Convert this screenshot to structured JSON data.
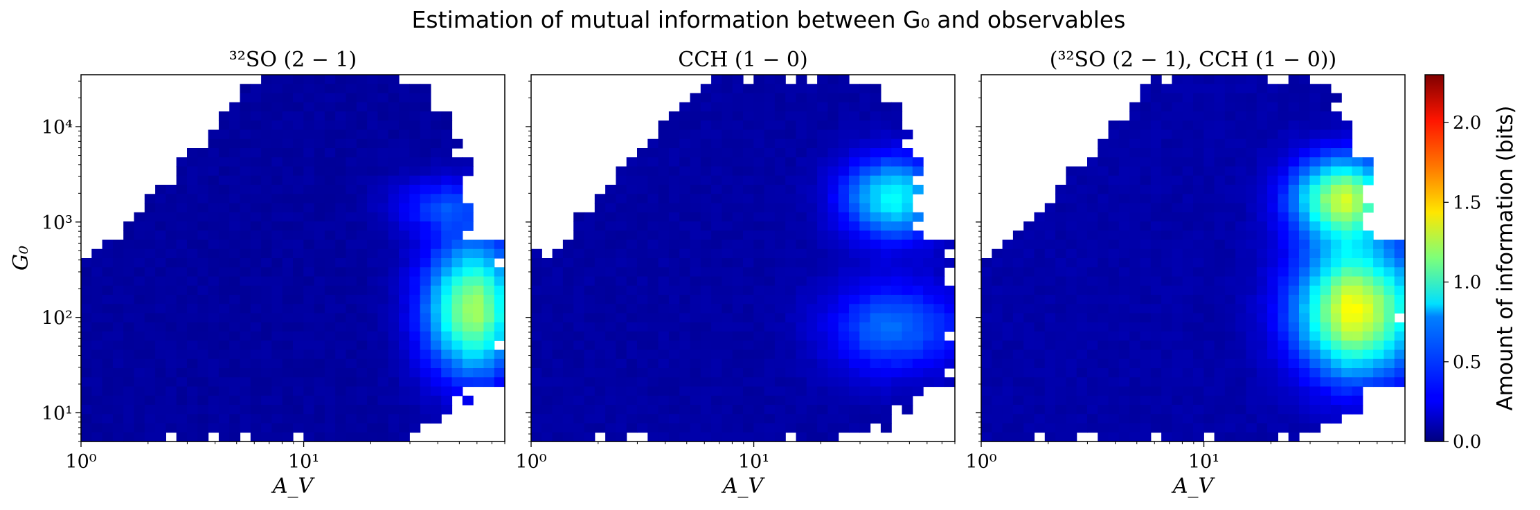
{
  "figure": {
    "title": "Estimation of mutual information between G₀ and observables"
  },
  "colorbar": {
    "label": "Amount of information (bits)",
    "ticks": [
      "0.0",
      "0.5",
      "1.0",
      "1.5",
      "2.0"
    ],
    "range": [
      0,
      2.3
    ],
    "colormap": "jet"
  },
  "chart_data": [
    {
      "type": "heatmap",
      "title": "³²SO (2 − 1)",
      "xlabel": "A_V",
      "ylabel": "G₀",
      "x_scale": "log",
      "y_scale": "log",
      "xlim": [
        1,
        80
      ],
      "ylim": [
        5,
        35000
      ],
      "x_ticks": [
        "10⁰",
        "10¹"
      ],
      "y_ticks": [
        "10¹",
        "10²",
        "10³",
        "10⁴"
      ],
      "peak_regions": [
        {
          "A_V": [
            35,
            80
          ],
          "G0": [
            30,
            500
          ],
          "max_bits": 1.25
        },
        {
          "A_V": [
            25,
            60
          ],
          "G0": [
            900,
            2500
          ],
          "max_bits": 0.35
        }
      ],
      "background_bits": 0.05
    },
    {
      "type": "heatmap",
      "title": "CCH (1 − 0)",
      "xlabel": "A_V",
      "ylabel": "",
      "x_scale": "log",
      "y_scale": "log",
      "xlim": [
        1,
        80
      ],
      "ylim": [
        5,
        35000
      ],
      "x_ticks": [
        "10⁰",
        "10¹"
      ],
      "y_ticks": [],
      "peak_regions": [
        {
          "A_V": [
            25,
            60
          ],
          "G0": [
            800,
            4000
          ],
          "max_bits": 0.85
        },
        {
          "A_V": [
            20,
            80
          ],
          "G0": [
            30,
            200
          ],
          "max_bits": 0.45
        }
      ],
      "background_bits": 0.06
    },
    {
      "type": "heatmap",
      "title": "(³²SO (2 − 1), CCH (1 − 0))",
      "xlabel": "A_V",
      "ylabel": "",
      "x_scale": "log",
      "y_scale": "log",
      "xlim": [
        1,
        80
      ],
      "ylim": [
        5,
        35000
      ],
      "x_ticks": [
        "10⁰",
        "10¹"
      ],
      "y_ticks": [],
      "peak_regions": [
        {
          "A_V": [
            25,
            80
          ],
          "G0": [
            30,
            450
          ],
          "max_bits": 1.35
        },
        {
          "A_V": [
            25,
            60
          ],
          "G0": [
            800,
            4000
          ],
          "max_bits": 1.25
        }
      ],
      "background_bits": 0.07
    }
  ]
}
